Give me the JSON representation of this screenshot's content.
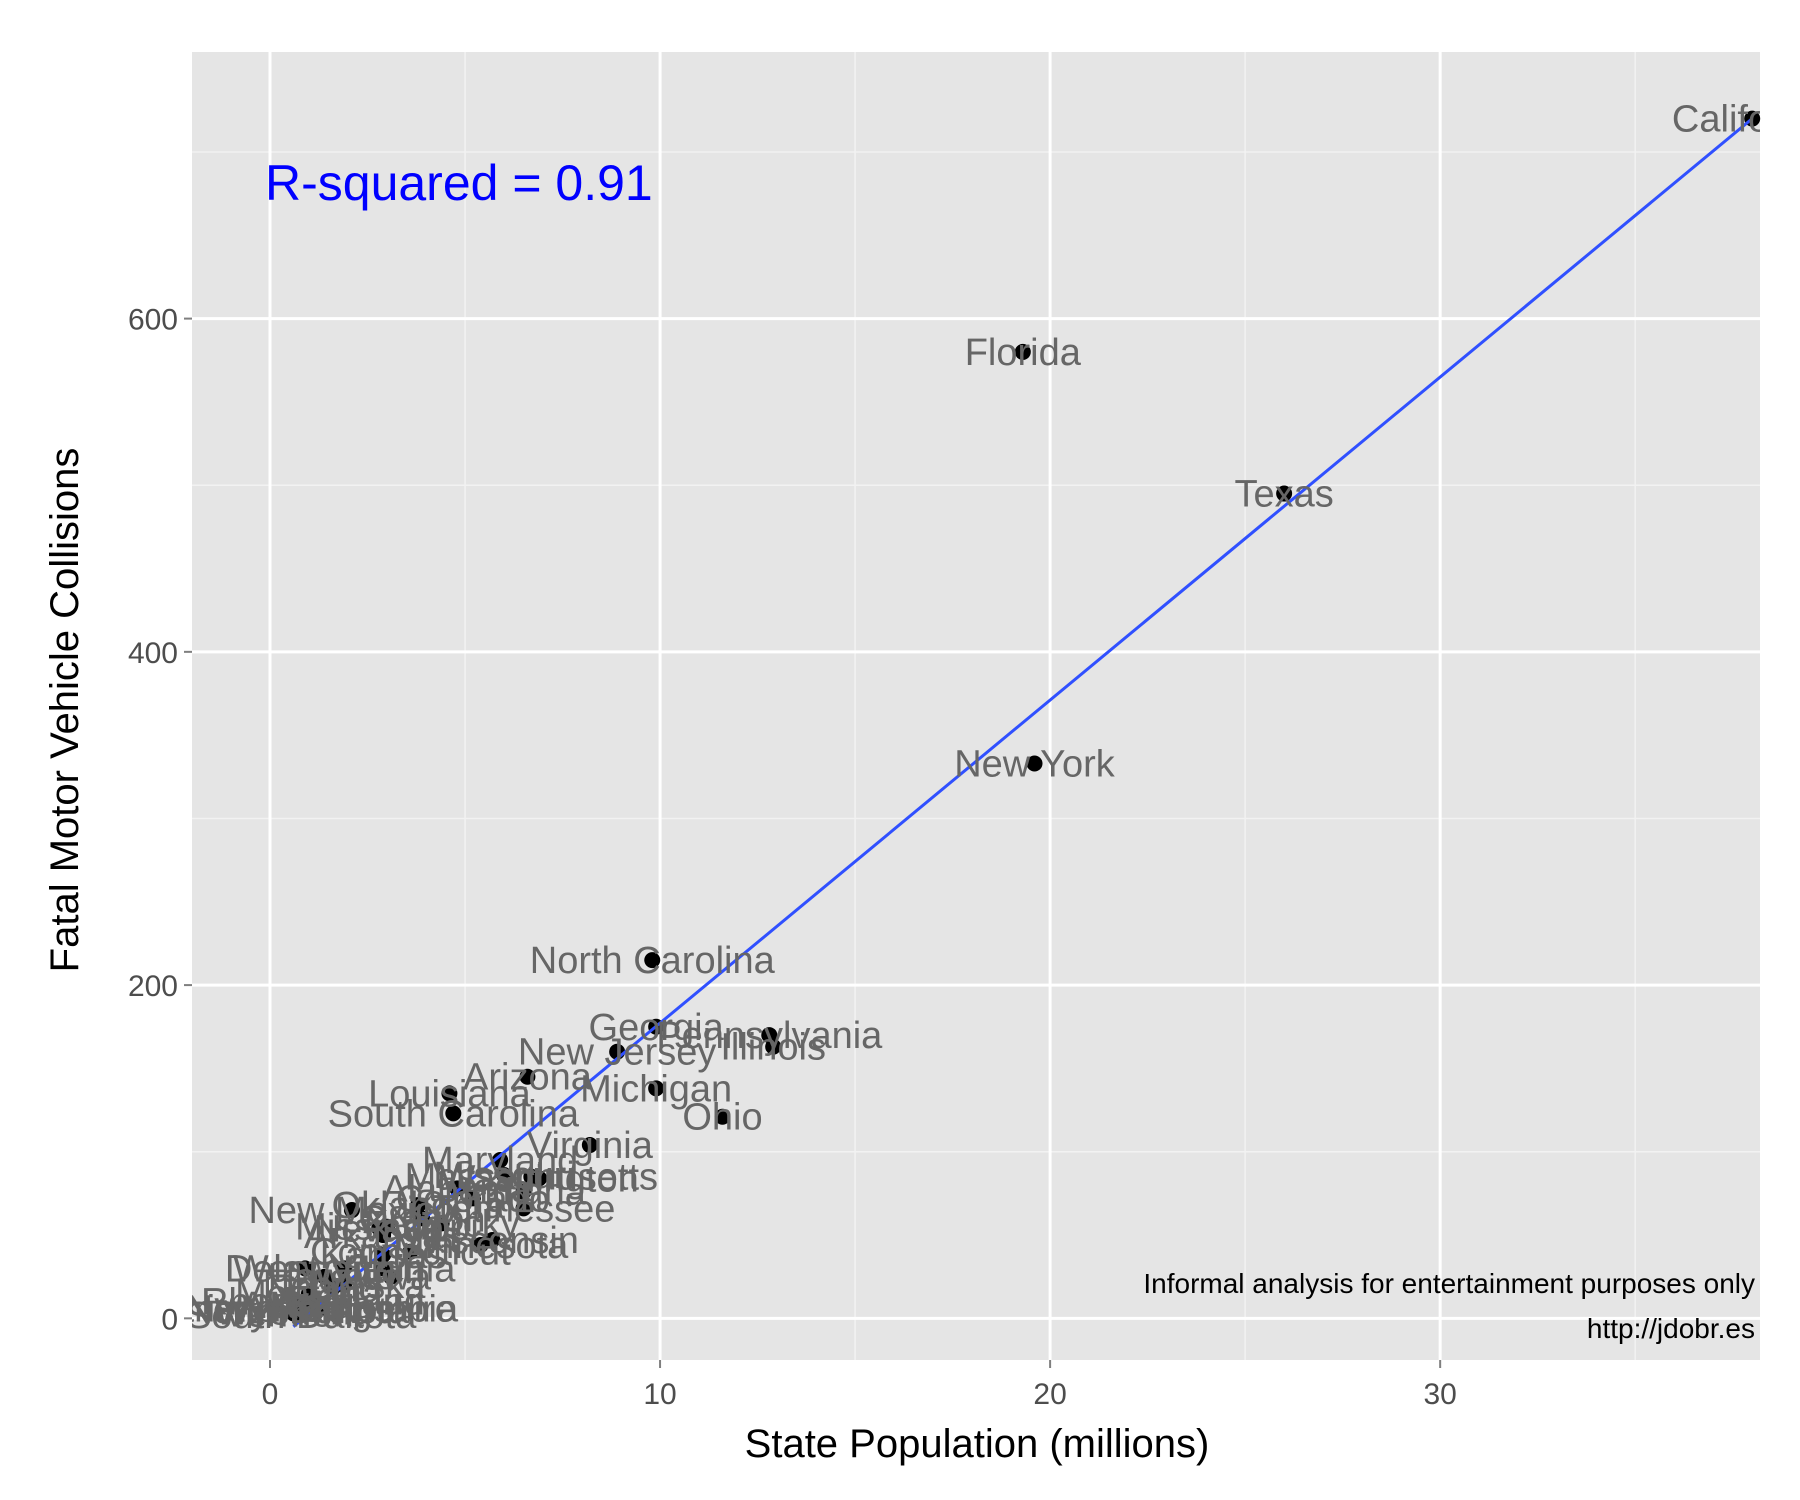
{
  "chart_data": {
    "type": "scatter",
    "title": "",
    "xlabel": "State Population (millions)",
    "ylabel": "Fatal Motor Vehicle Collisions",
    "xlim": [
      -2,
      38.2
    ],
    "ylim": [
      -25,
      760
    ],
    "x_ticks": [
      0,
      10,
      20,
      30
    ],
    "y_ticks": [
      0,
      200,
      400,
      600
    ],
    "grid": true,
    "fit_line": {
      "x": [
        0.6,
        38.0
      ],
      "y": [
        -5,
        720
      ],
      "color": "#3050ff"
    },
    "annotations": {
      "r_squared": "R-squared = 0.91",
      "r_squared_color": "#0000ff",
      "disclaimer": "Informal analysis for entertainment purposes only",
      "source": "http://jdobr.es"
    },
    "points": [
      {
        "label": "California",
        "x": 38.0,
        "y": 720
      },
      {
        "label": "Florida",
        "x": 19.3,
        "y": 580
      },
      {
        "label": "Texas",
        "x": 26.0,
        "y": 495
      },
      {
        "label": "New York",
        "x": 19.6,
        "y": 333
      },
      {
        "label": "North Carolina",
        "x": 9.8,
        "y": 215
      },
      {
        "label": "Georgia",
        "x": 9.9,
        "y": 175
      },
      {
        "label": "Pennsylvania",
        "x": 12.8,
        "y": 170
      },
      {
        "label": "Illinois",
        "x": 12.9,
        "y": 163
      },
      {
        "label": "New Jersey",
        "x": 8.9,
        "y": 160
      },
      {
        "label": "Arizona",
        "x": 6.6,
        "y": 145
      },
      {
        "label": "Michigan",
        "x": 9.9,
        "y": 138
      },
      {
        "label": "Louisiana",
        "x": 4.6,
        "y": 135
      },
      {
        "label": "South Carolina",
        "x": 4.7,
        "y": 123
      },
      {
        "label": "Ohio",
        "x": 11.6,
        "y": 121
      },
      {
        "label": "Virginia",
        "x": 8.2,
        "y": 104
      },
      {
        "label": "Maryland",
        "x": 5.9,
        "y": 95
      },
      {
        "label": "Massachusetts",
        "x": 6.7,
        "y": 85
      },
      {
        "label": "Washington",
        "x": 6.9,
        "y": 84
      },
      {
        "label": "Missouri",
        "x": 6.0,
        "y": 86
      },
      {
        "label": "Alabama",
        "x": 4.8,
        "y": 78
      },
      {
        "label": "Indiana",
        "x": 6.5,
        "y": 76
      },
      {
        "label": "Colorado",
        "x": 5.2,
        "y": 72
      },
      {
        "label": "Tennessee",
        "x": 6.5,
        "y": 66
      },
      {
        "label": "Kentucky",
        "x": 4.4,
        "y": 57
      },
      {
        "label": "Oklahoma",
        "x": 3.8,
        "y": 68
      },
      {
        "label": "New Mexico",
        "x": 2.1,
        "y": 65
      },
      {
        "label": "Oregon",
        "x": 3.9,
        "y": 60
      },
      {
        "label": "Mississippi",
        "x": 3.0,
        "y": 55
      },
      {
        "label": "Arkansas",
        "x": 2.9,
        "y": 50
      },
      {
        "label": "Wisconsin",
        "x": 5.7,
        "y": 47
      },
      {
        "label": "Minnesota",
        "x": 5.4,
        "y": 44
      },
      {
        "label": "Connecticut",
        "x": 3.6,
        "y": 40
      },
      {
        "label": "Nevada",
        "x": 2.8,
        "y": 54
      },
      {
        "label": "Kansas",
        "x": 2.9,
        "y": 38
      },
      {
        "label": "Utah",
        "x": 2.9,
        "y": 30
      },
      {
        "label": "Iowa",
        "x": 3.1,
        "y": 25
      },
      {
        "label": "West Virginia",
        "x": 1.9,
        "y": 30
      },
      {
        "label": "Nebraska",
        "x": 1.9,
        "y": 20
      },
      {
        "label": "Idaho",
        "x": 1.6,
        "y": 18
      },
      {
        "label": "Delaware",
        "x": 0.9,
        "y": 30
      },
      {
        "label": "Hawaii",
        "x": 1.4,
        "y": 25
      },
      {
        "label": "Montana",
        "x": 1.0,
        "y": 15
      },
      {
        "label": "Maine",
        "x": 1.3,
        "y": 8
      },
      {
        "label": "New Hampshire",
        "x": 1.3,
        "y": 6
      },
      {
        "label": "Rhode Island",
        "x": 1.1,
        "y": 10
      },
      {
        "label": "Alaska",
        "x": 0.7,
        "y": 8
      },
      {
        "label": "Wyoming",
        "x": 0.6,
        "y": 4
      },
      {
        "label": "Vermont",
        "x": 0.6,
        "y": 3
      },
      {
        "label": "District of Columbia",
        "x": 0.6,
        "y": 6
      },
      {
        "label": "South Dakota",
        "x": 0.8,
        "y": 2
      },
      {
        "label": "North Dakota",
        "x": 0.7,
        "y": 5
      }
    ]
  }
}
